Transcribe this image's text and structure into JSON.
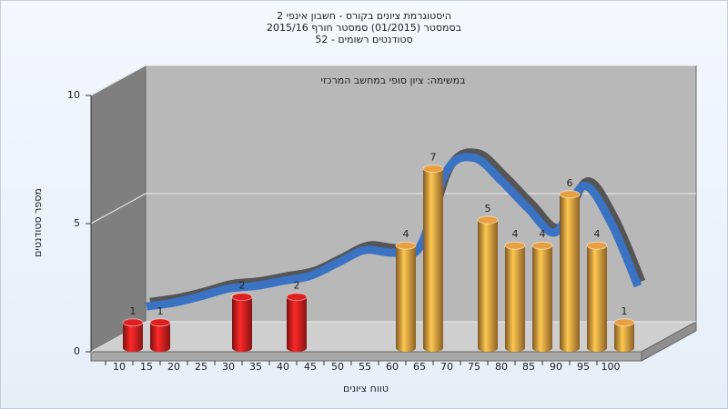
{
  "chart_data": {
    "type": "bar",
    "title": [
      "היסטוגרמת ציונים בקורס - חשבון אינפי 2",
      "בסמסטר (01/2015) סמסטר חורף 2015/16",
      "סטודנטים רשומים - 52"
    ],
    "subtitle": "במשימה: ציון סופי במחשב המרכזי",
    "x_label": "טווח ציונים",
    "y_label": "מספר סטודנטים",
    "categories": [
      "10",
      "15",
      "20",
      "25",
      "30",
      "35",
      "40",
      "45",
      "50",
      "55",
      "60",
      "65",
      "70",
      "75",
      "80",
      "85",
      "90",
      "95",
      "100"
    ],
    "values": [
      1,
      1,
      0,
      0,
      2,
      0,
      2,
      0,
      0,
      0,
      4,
      7,
      0,
      5,
      4,
      4,
      6,
      4,
      1
    ],
    "bar_colors": [
      "#e02020",
      "#e02020",
      "#e02020",
      "#e02020",
      "#e02020",
      "#e02020",
      "#e02020",
      "#e02020",
      "#e02020",
      "#e02020",
      "#e8a040",
      "#e8a040",
      "#e8a040",
      "#e8a040",
      "#e8a040",
      "#e8a040",
      "#e8a040",
      "#e8a040",
      "#e8a040"
    ],
    "curve": {
      "color": "#3a72c4",
      "values": [
        1.2,
        1.35,
        1.6,
        1.9,
        2.0,
        2.2,
        2.4,
        2.9,
        3.4,
        3.3,
        3.5,
        6.5,
        7.0,
        6.1,
        5.0,
        4.1,
        5.9,
        4.5,
        2.0
      ]
    },
    "ylim": [
      0,
      10
    ],
    "yticks": [
      0,
      5,
      10
    ],
    "grid": true
  }
}
